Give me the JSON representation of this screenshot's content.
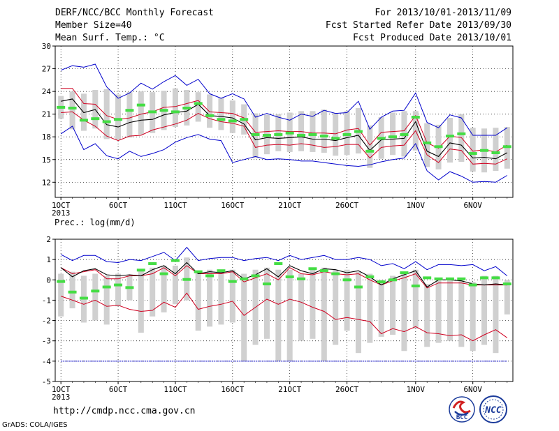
{
  "header": {
    "title": "DERF/NCC/BCC Monthly Forecast",
    "member_size": "Member Size=40",
    "variable": "Mean Surf. Temp.: °C",
    "period": "For 2013/10/01-2013/11/09",
    "fcst_started": "Fcst Started Refer Date 2013/09/30",
    "fcst_produced": "Fcst Produced Date 2013/10/01"
  },
  "footer": {
    "url": "http://cmdp.ncc.cma.gov.cn",
    "grads": "GrADS: COLA/IGES",
    "logo_bcc": "BCC",
    "logo_ncc": "NCC"
  },
  "colors": {
    "max_min": "#0000cc",
    "pct": "#d00020",
    "mean": "#000000",
    "box": "#d0d0d0",
    "dash": "#44dd44"
  },
  "chart_data": [
    {
      "type": "line",
      "title": "Mean Surf. Temp.: °C",
      "days": 40,
      "x_tick_labels": [
        "1OCT",
        "6OCT",
        "11OCT",
        "16OCT",
        "21OCT",
        "26OCT",
        "1NOV",
        "6NOV"
      ],
      "x_tick_days": [
        1,
        6,
        11,
        16,
        21,
        26,
        32,
        37
      ],
      "x_year_label": "2013",
      "ylim": [
        10,
        30
      ],
      "y_ticks": [
        12,
        15,
        18,
        21,
        24,
        27,
        30
      ],
      "grid": true,
      "series": [
        {
          "key": "max",
          "values": [
            26.8,
            27.4,
            27.2,
            27.6,
            24.6,
            23.1,
            23.8,
            25.1,
            24.3,
            25.3,
            26.1,
            24.8,
            25.6,
            23.7,
            23.1,
            23.7,
            23.0,
            20.6,
            21.1,
            20.6,
            20.2,
            21.0,
            20.7,
            21.5,
            21.1,
            21.2,
            22.7,
            19.0,
            20.6,
            21.4,
            21.5,
            23.8,
            19.9,
            19.2,
            20.9,
            20.5,
            18.2,
            18.2,
            18.2,
            19.2
          ]
        },
        {
          "key": "min",
          "values": [
            18.4,
            19.4,
            16.3,
            17.1,
            15.5,
            15.1,
            16.1,
            15.4,
            15.8,
            16.3,
            17.3,
            17.9,
            18.3,
            17.7,
            17.5,
            14.6,
            15.0,
            15.4,
            15.0,
            15.1,
            15.0,
            14.8,
            14.8,
            14.6,
            14.4,
            14.2,
            14.1,
            14.3,
            14.7,
            15.0,
            15.2,
            17.1,
            13.5,
            12.3,
            13.4,
            12.8,
            12.0,
            12.1,
            12.0,
            12.9
          ]
        },
        {
          "key": "p90",
          "values": [
            24.4,
            24.4,
            22.4,
            22.3,
            20.8,
            20.3,
            20.5,
            21.0,
            21.3,
            21.9,
            22.0,
            22.4,
            22.8,
            21.3,
            21.2,
            21.1,
            20.5,
            18.6,
            18.7,
            18.8,
            18.7,
            18.7,
            18.5,
            18.5,
            18.4,
            18.9,
            19.1,
            16.9,
            18.6,
            18.7,
            18.8,
            20.8,
            17.2,
            16.5,
            18.1,
            17.9,
            16.1,
            16.3,
            16.0,
            16.9
          ]
        },
        {
          "key": "p10",
          "values": [
            21.2,
            21.3,
            20.2,
            19.4,
            18.1,
            17.5,
            18.1,
            18.2,
            18.9,
            19.3,
            19.7,
            20.2,
            21.1,
            20.4,
            20.0,
            19.8,
            19.4,
            16.6,
            16.9,
            17.0,
            16.9,
            17.1,
            16.9,
            16.6,
            16.7,
            17.0,
            17.0,
            15.2,
            16.6,
            16.8,
            16.9,
            18.8,
            15.6,
            14.6,
            16.4,
            16.2,
            14.4,
            14.5,
            14.4,
            15.1
          ]
        },
        {
          "key": "mean",
          "values": [
            22.7,
            23.0,
            21.2,
            21.6,
            19.6,
            19.3,
            19.9,
            20.2,
            20.3,
            20.9,
            21.2,
            21.4,
            22.3,
            20.8,
            20.7,
            20.5,
            19.7,
            17.6,
            17.9,
            17.8,
            17.9,
            18.0,
            17.7,
            17.7,
            17.5,
            17.9,
            18.2,
            16.2,
            17.6,
            17.7,
            17.8,
            20.0,
            16.1,
            15.4,
            17.2,
            16.9,
            15.2,
            15.3,
            15.1,
            15.9
          ]
        },
        {
          "key": "median",
          "values": [
            21.9,
            21.8,
            20.2,
            20.4,
            20.0,
            20.3,
            21.5,
            22.2,
            21.3,
            21.5,
            21.3,
            21.8,
            22.4,
            20.8,
            20.3,
            20.1,
            20.3,
            18.3,
            18.2,
            18.3,
            18.5,
            18.2,
            18.3,
            18.1,
            17.8,
            18.3,
            18.7,
            16.1,
            17.8,
            18.0,
            18.3,
            20.6,
            17.2,
            16.7,
            18.1,
            18.4,
            15.8,
            16.2,
            15.9,
            16.7
          ]
        },
        {
          "key": "q_hi",
          "values": [
            23.4,
            24.0,
            23.7,
            24.2,
            24.3,
            23.6,
            23.9,
            24.0,
            23.9,
            24.1,
            24.4,
            24.2,
            23.9,
            23.6,
            23.1,
            22.8,
            22.3,
            21.1,
            20.9,
            21.0,
            21.2,
            21.4,
            21.4,
            21.6,
            21.1,
            21.4,
            21.8,
            19.5,
            20.6,
            21.2,
            21.4,
            21.4,
            19.8,
            19.6,
            20.5,
            21.0,
            19.2,
            19.1,
            19.2,
            19.3
          ]
        },
        {
          "key": "q_lo",
          "values": [
            20.4,
            19.0,
            18.8,
            19.1,
            17.7,
            17.6,
            17.9,
            18.3,
            18.5,
            18.9,
            19.3,
            19.5,
            20.0,
            19.2,
            18.9,
            18.5,
            18.3,
            15.2,
            15.7,
            16.1,
            16.0,
            16.1,
            16.0,
            15.9,
            15.5,
            15.6,
            15.8,
            13.9,
            15.1,
            15.6,
            15.4,
            16.2,
            14.0,
            13.7,
            14.6,
            14.7,
            13.4,
            13.3,
            13.5,
            13.8
          ]
        }
      ]
    },
    {
      "type": "line",
      "title": "Prec.: log(mm/d)",
      "days": 40,
      "x_tick_labels": [
        "1OCT",
        "6OCT",
        "11OCT",
        "16OCT",
        "21OCT",
        "26OCT",
        "1NOV",
        "6NOV"
      ],
      "x_tick_days": [
        1,
        6,
        11,
        16,
        21,
        26,
        32,
        37
      ],
      "x_year_label": "2013",
      "ylim": [
        -5,
        2
      ],
      "y_ticks": [
        -5,
        -4,
        -3,
        -2,
        -1,
        0,
        1,
        2
      ],
      "grid": true,
      "series": [
        {
          "key": "max",
          "values": [
            1.25,
            0.95,
            1.2,
            1.2,
            0.9,
            0.85,
            1.0,
            0.95,
            1.15,
            1.35,
            0.95,
            1.6,
            0.95,
            1.05,
            1.1,
            1.1,
            0.95,
            1.05,
            1.1,
            0.95,
            1.2,
            1.0,
            1.1,
            1.2,
            1.0,
            1.0,
            1.1,
            1.0,
            0.7,
            0.8,
            0.55,
            0.9,
            0.5,
            0.75,
            0.75,
            0.7,
            0.75,
            0.45,
            0.65,
            0.2
          ]
        },
        {
          "key": "mean",
          "values": [
            0.6,
            0.15,
            0.45,
            0.55,
            0.25,
            0.2,
            0.25,
            0.2,
            0.5,
            0.7,
            0.3,
            0.85,
            0.3,
            0.4,
            0.35,
            0.45,
            0.05,
            0.25,
            0.55,
            0.15,
            0.7,
            0.45,
            0.3,
            0.55,
            0.5,
            0.35,
            0.45,
            0.15,
            -0.25,
            0.05,
            0.25,
            0.45,
            -0.35,
            0.0,
            0.0,
            -0.05,
            -0.2,
            -0.25,
            -0.2,
            -0.25
          ]
        },
        {
          "key": "p90",
          "values": [
            0.6,
            0.3,
            0.4,
            0.5,
            0.05,
            0.05,
            0.2,
            0.2,
            0.3,
            0.6,
            0.2,
            0.7,
            0.3,
            0.3,
            0.3,
            0.4,
            -0.1,
            0.1,
            0.3,
            0.0,
            0.6,
            0.3,
            0.25,
            0.4,
            0.3,
            0.25,
            0.3,
            0.0,
            -0.25,
            -0.05,
            0.1,
            0.3,
            -0.4,
            -0.15,
            -0.15,
            -0.15,
            -0.25,
            -0.25,
            -0.25,
            -0.25
          ]
        },
        {
          "key": "p10",
          "values": [
            -0.8,
            -1.0,
            -1.2,
            -1.0,
            -1.3,
            -1.25,
            -1.45,
            -1.55,
            -1.5,
            -1.1,
            -1.35,
            -0.65,
            -1.45,
            -1.3,
            -1.2,
            -1.05,
            -1.75,
            -1.35,
            -0.95,
            -1.2,
            -0.95,
            -1.1,
            -1.35,
            -1.55,
            -1.95,
            -1.85,
            -1.95,
            -2.05,
            -2.65,
            -2.4,
            -2.55,
            -2.3,
            -2.6,
            -2.65,
            -2.75,
            -2.7,
            -3.0,
            -2.7,
            -2.45,
            -2.85
          ]
        },
        {
          "key": "min",
          "values": [
            -4,
            -4,
            -4,
            -4,
            -4,
            -4,
            -4,
            -4,
            -4,
            -4,
            -4,
            -4,
            -4,
            -4,
            -4,
            -4,
            -4,
            -4,
            -4,
            -4,
            -4,
            -4,
            -4,
            -4,
            -4,
            -4,
            -4,
            -4,
            -4,
            -4,
            -4,
            -4,
            -4,
            -4,
            -4,
            -4,
            -4,
            -4,
            -4,
            -4
          ]
        },
        {
          "key": "median",
          "values": [
            -0.08,
            -0.6,
            -0.9,
            -0.55,
            -0.35,
            -0.25,
            -0.38,
            0.48,
            0.8,
            0.3,
            0.95,
            0.02,
            0.4,
            0.2,
            0.45,
            -0.08,
            0.05,
            0.2,
            -0.2,
            0.8,
            0.15,
            0.05,
            0.55,
            0.45,
            0.3,
            0.0,
            -0.35,
            0.15,
            -0.1,
            0.0,
            0.35,
            -0.3,
            0.1,
            0.05,
            0.05,
            0.05,
            -0.25,
            0.1,
            0.1,
            -0.2
          ]
        },
        {
          "key": "q_hi",
          "values": [
            0.3,
            0.4,
            0.2,
            0.3,
            0.2,
            0.3,
            0.2,
            0.5,
            0.6,
            0.7,
            0.7,
            1.1,
            0.4,
            0.5,
            0.5,
            0.5,
            0.3,
            0.5,
            0.6,
            0.5,
            0.5,
            0.3,
            0.5,
            0.6,
            0.5,
            0.5,
            0.4,
            0.3,
            0.0,
            0.2,
            0.4,
            0.5,
            -0.2,
            0.1,
            0.1,
            0.1,
            -0.1,
            0.2,
            0.2,
            0.0
          ]
        },
        {
          "key": "q_lo",
          "values": [
            -1.8,
            -1.4,
            -2.1,
            -2.0,
            -2.2,
            -1.3,
            -1.0,
            -2.6,
            -1.8,
            -1.6,
            -1.2,
            -1.0,
            -2.5,
            -2.3,
            -2.2,
            -2.1,
            -4.0,
            -3.2,
            -2.9,
            -4.0,
            -4.0,
            -3.0,
            -2.9,
            -4.0,
            -3.2,
            -2.5,
            -3.6,
            -3.1,
            -2.8,
            -2.7,
            -3.5,
            -2.4,
            -3.3,
            -3.1,
            -3.0,
            -3.3,
            -3.5,
            -3.2,
            -3.6,
            -1.7
          ]
        }
      ]
    }
  ]
}
